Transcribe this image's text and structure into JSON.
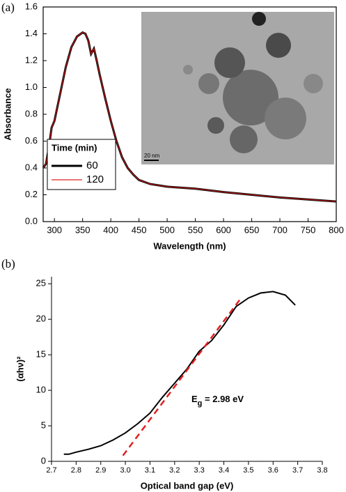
{
  "chart_data": [
    {
      "type": "line",
      "panel_label": "(a)",
      "xlabel": "Wavelength (nm)",
      "ylabel": "Absorbance",
      "xlim": [
        280,
        800
      ],
      "xticks": [
        300,
        350,
        400,
        450,
        500,
        550,
        600,
        650,
        700,
        750,
        800
      ],
      "ylim": [
        0,
        1.6
      ],
      "yticks": [
        {
          "value": 0,
          "label": "0.0"
        },
        0.2,
        0.4,
        0.6,
        0.8,
        {
          "value": 1,
          "label": "1.0"
        },
        1.2,
        1.4,
        1.6
      ],
      "legend_title": "Time (min)",
      "legend_position": "left",
      "inset_scale_label": "20 nm",
      "series": [
        {
          "name": "60",
          "color": "#000000",
          "x": [
            280,
            285,
            290,
            295,
            300,
            310,
            320,
            330,
            340,
            350,
            355,
            360,
            365,
            370,
            375,
            380,
            390,
            400,
            410,
            420,
            430,
            440,
            450,
            470,
            500,
            550,
            600,
            650,
            700,
            750,
            800
          ],
          "values": [
            0.4,
            0.43,
            0.55,
            0.7,
            0.75,
            0.95,
            1.15,
            1.3,
            1.38,
            1.41,
            1.4,
            1.35,
            1.25,
            1.29,
            1.2,
            1.1,
            0.92,
            0.75,
            0.6,
            0.48,
            0.4,
            0.35,
            0.31,
            0.28,
            0.26,
            0.245,
            0.22,
            0.2,
            0.18,
            0.165,
            0.15
          ]
        },
        {
          "name": "120",
          "color": "#e02020",
          "x": [
            280,
            285,
            290,
            295,
            300,
            310,
            320,
            330,
            340,
            350,
            355,
            360,
            365,
            370,
            375,
            380,
            390,
            400,
            410,
            420,
            430,
            440,
            450,
            470,
            500,
            550,
            600,
            650,
            700,
            750,
            800
          ],
          "values": [
            0.4,
            0.43,
            0.55,
            0.7,
            0.75,
            0.95,
            1.15,
            1.3,
            1.38,
            1.41,
            1.4,
            1.35,
            1.25,
            1.29,
            1.2,
            1.1,
            0.92,
            0.75,
            0.6,
            0.48,
            0.4,
            0.35,
            0.31,
            0.28,
            0.26,
            0.245,
            0.22,
            0.2,
            0.18,
            0.165,
            0.15
          ]
        }
      ]
    },
    {
      "type": "line",
      "panel_label": "(b)",
      "xlabel": "Optical band gap (eV)",
      "ylabel": "(αhν)²",
      "annotation": [
        "E",
        "g",
        " = 2.98 eV"
      ],
      "xlim": [
        2.7,
        3.8
      ],
      "xticks": [
        2.7,
        2.8,
        2.9,
        {
          "value": 3,
          "label": "3.0"
        },
        3.1,
        3.2,
        3.3,
        3.4,
        3.5,
        3.6,
        3.7,
        3.8
      ],
      "ylim": [
        0,
        26
      ],
      "yticks": [
        0,
        5,
        10,
        15,
        20,
        25
      ],
      "series": [
        {
          "color": "#000000",
          "x": [
            2.75,
            2.77,
            2.8,
            2.85,
            2.9,
            2.95,
            3.0,
            3.05,
            3.1,
            3.15,
            3.2,
            3.25,
            3.3,
            3.35,
            3.4,
            3.45,
            3.5,
            3.55,
            3.6,
            3.65,
            3.69
          ],
          "values": [
            1.0,
            1.0,
            1.3,
            1.7,
            2.2,
            3.0,
            4.0,
            5.3,
            6.8,
            9.0,
            11.0,
            13.0,
            15.5,
            17.0,
            19.2,
            21.8,
            23.0,
            23.7,
            23.9,
            23.4,
            22.0
          ]
        },
        {
          "color": "#e02020",
          "dashed": true,
          "x": [
            2.99,
            3.47
          ],
          "values": [
            0.8,
            23.0
          ]
        }
      ]
    }
  ]
}
